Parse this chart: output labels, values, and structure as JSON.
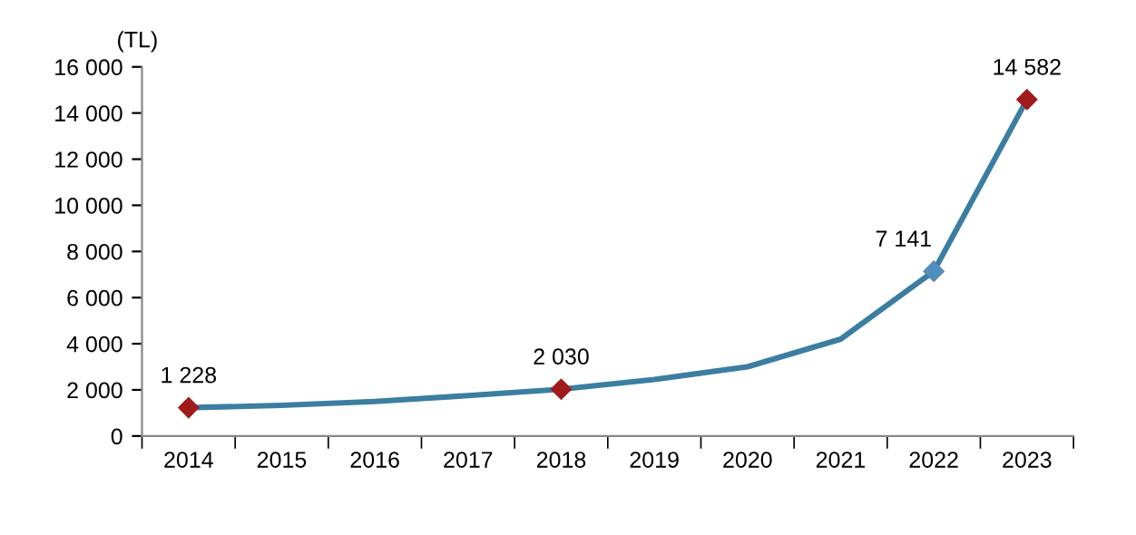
{
  "chart_data": {
    "type": "line",
    "ylabel": "(TL)",
    "categories": [
      "2014",
      "2015",
      "2016",
      "2017",
      "2018",
      "2019",
      "2020",
      "2021",
      "2022",
      "2023"
    ],
    "series": [
      {
        "color": "#3b7ea1",
        "values": [
          1228,
          1330,
          1500,
          1750,
          2030,
          2450,
          3000,
          4200,
          7141,
          14582
        ],
        "colors": [
          "#a01c1c",
          null,
          null,
          null,
          "#a01c1c",
          null,
          null,
          null,
          "#4f8fc0",
          "#a01c1c"
        ],
        "value_labels": [
          "1 228",
          null,
          null,
          null,
          "2 030",
          null,
          null,
          null,
          "7 141",
          "14 582"
        ]
      }
    ],
    "ylim": [
      0,
      16000
    ],
    "yticks": [
      {
        "value": 0,
        "label": "0"
      },
      {
        "value": 2000,
        "label": "2 000"
      },
      {
        "value": 4000,
        "label": "4 000"
      },
      {
        "value": 6000,
        "label": "6 000"
      },
      {
        "value": 8000,
        "label": "8 000"
      },
      {
        "value": 10000,
        "label": "10 000"
      },
      {
        "value": 12000,
        "label": "12 000"
      },
      {
        "value": 14000,
        "label": "14 000"
      },
      {
        "value": 16000,
        "label": "16 000"
      }
    ],
    "line_style": "solid",
    "grid": false,
    "legend": false
  }
}
